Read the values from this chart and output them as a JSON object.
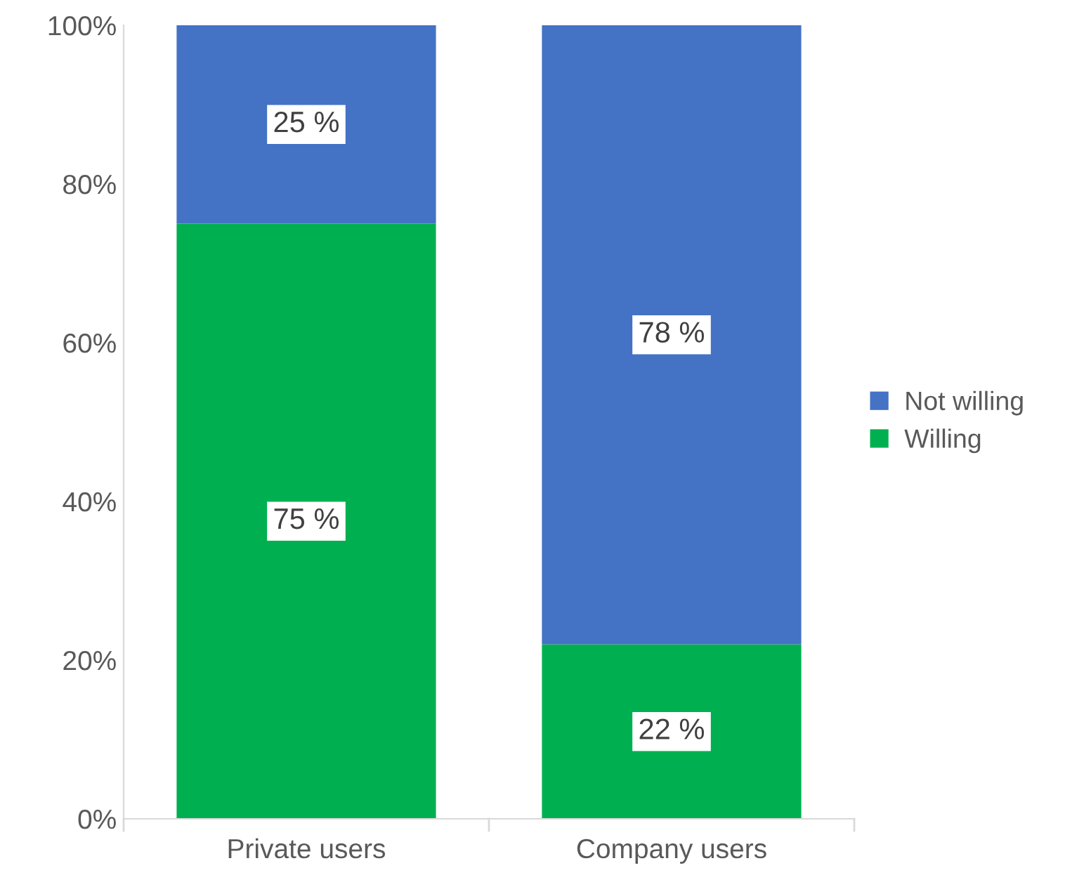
{
  "chart_data": {
    "type": "bar",
    "stacked": true,
    "categories": [
      "Private users",
      "Company users"
    ],
    "series": [
      {
        "name": "Willing",
        "color": "#00b050",
        "values": [
          75,
          22
        ],
        "value_labels": [
          "75 %",
          "22 %"
        ]
      },
      {
        "name": "Not willing",
        "color": "#4472c4",
        "values": [
          25,
          78
        ],
        "value_labels": [
          "25 %",
          "78 %"
        ]
      }
    ],
    "ylim": [
      0,
      100
    ],
    "yticks": [
      {
        "value": 0,
        "label": "0%"
      },
      {
        "value": 20,
        "label": "20%"
      },
      {
        "value": 40,
        "label": "40%"
      },
      {
        "value": 60,
        "label": "60%"
      },
      {
        "value": 80,
        "label": "80%"
      },
      {
        "value": 100,
        "label": "100%"
      }
    ],
    "grid": false,
    "legend": "right"
  }
}
